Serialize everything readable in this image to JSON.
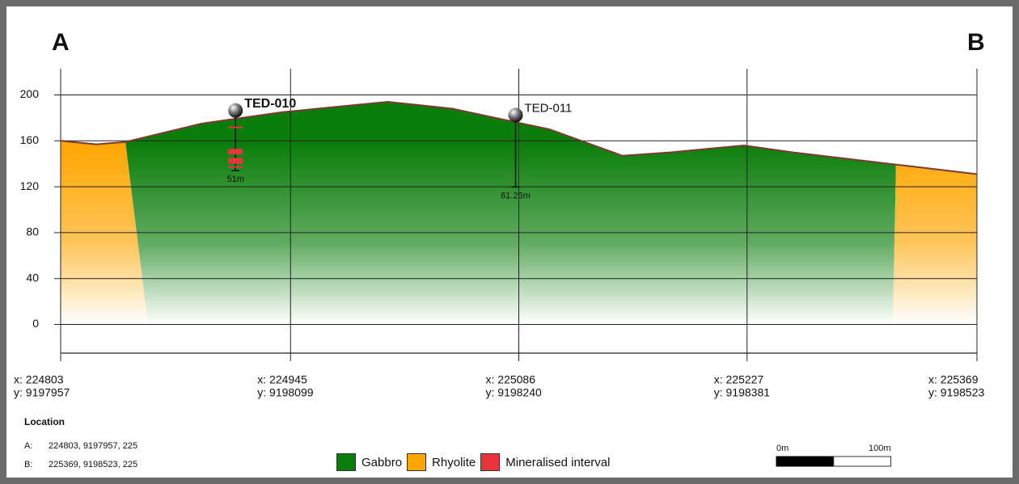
{
  "chart_data": {
    "type": "cross-section",
    "start_label": "A",
    "end_label": "B",
    "ylim": [
      -25,
      225
    ],
    "yticks": [
      0,
      40,
      80,
      120,
      160,
      200
    ],
    "xlim": [
      224803,
      225369
    ],
    "xticks": [
      {
        "value": 224803,
        "label": "x: 224803"
      },
      {
        "value": 224945,
        "label": "x: 224945"
      },
      {
        "value": 225086,
        "label": "x: 225086"
      },
      {
        "value": 225227,
        "label": "x: 225227"
      },
      {
        "value": 225369,
        "label": "x: 225369"
      }
    ],
    "northing_ticks": [
      {
        "value": 9197957,
        "label": "y: 9197957"
      },
      {
        "value": 9198099,
        "label": "y: 9198099"
      },
      {
        "value": 9198240,
        "label": "y: 9198240"
      },
      {
        "value": 9198381,
        "label": "y: 9198381"
      },
      {
        "value": 9198523,
        "label": "y: 9198523"
      }
    ],
    "grid": true,
    "profile": {
      "color": "#7a3b2e",
      "x": [
        224803,
        224825,
        224843,
        224890,
        224940,
        225005,
        225045,
        225105,
        225150,
        225180,
        225225,
        225255,
        225315,
        225369
      ],
      "values": [
        160,
        157,
        159,
        175,
        185,
        194,
        188,
        170,
        147,
        150,
        156,
        150,
        140,
        131
      ]
    },
    "units": [
      {
        "name": "Gabbro",
        "color": "#0a7d0a"
      },
      {
        "name": "Rhyolite",
        "color": "#ffa500"
      },
      {
        "name": "Mineralised interval",
        "color": "#e8343a"
      }
    ],
    "contacts": {
      "left_top": 224843,
      "left_base": 224857,
      "right_top": 225319,
      "right_base": 225317
    },
    "drillholes": [
      {
        "name": "TED-010",
        "x": 224911,
        "collar": 185,
        "depth": 51,
        "depth_label": "51m",
        "highlighted": true,
        "intervals": [
          [
            12.5,
            13.5
          ],
          [
            32,
            37
          ],
          [
            40,
            45
          ],
          [
            47,
            48
          ]
        ]
      },
      {
        "name": "TED-011",
        "x": 225084,
        "collar": 181,
        "depth": 61.25,
        "depth_label": "61.25m",
        "highlighted": false,
        "intervals": []
      }
    ],
    "location": {
      "title": "Location",
      "rows": [
        [
          "A:",
          "224803, 9197957, 225"
        ],
        [
          "B:",
          "225369, 9198523, 225"
        ]
      ]
    },
    "scalebar": {
      "length": 100,
      "labels": [
        "0m",
        "100m"
      ]
    }
  }
}
